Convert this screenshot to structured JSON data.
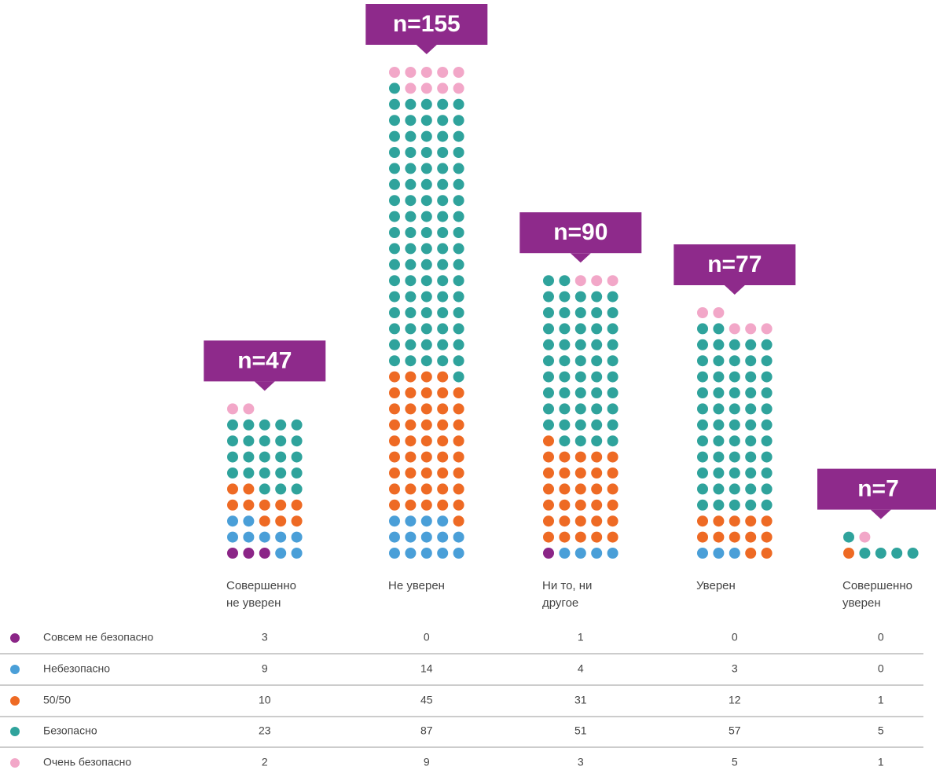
{
  "chart_data": {
    "type": "dot-matrix",
    "categories": [
      "Совершенно\nне уверен",
      "Не уверен",
      "Ни то, ни\nдругое",
      "Уверен",
      "Совершенно\nуверен"
    ],
    "totals": [
      47,
      155,
      90,
      77,
      7
    ],
    "total_labels": [
      "n=47",
      "n=155",
      "n=90",
      "n=77",
      "n=7"
    ],
    "series": [
      {
        "name": "Совсем не безопасно",
        "color": "#8b2587",
        "values": [
          3,
          0,
          1,
          0,
          0
        ]
      },
      {
        "name": "Небезопасно",
        "color": "#4a9fd8",
        "values": [
          9,
          14,
          4,
          3,
          0
        ]
      },
      {
        "name": "50/50",
        "color": "#ee6a24",
        "values": [
          10,
          45,
          31,
          12,
          1
        ]
      },
      {
        "name": "Безопасно",
        "color": "#2fa39c",
        "values": [
          23,
          87,
          51,
          57,
          5
        ]
      },
      {
        "name": "Очень безопасно",
        "color": "#f2a7c8",
        "values": [
          2,
          9,
          3,
          5,
          1
        ]
      }
    ],
    "box_color": "#8e2a8b"
  }
}
